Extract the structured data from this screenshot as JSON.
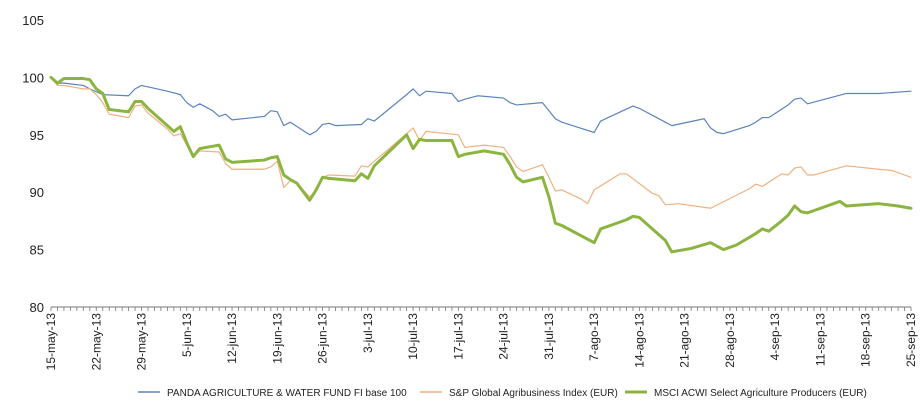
{
  "chart_data": {
    "type": "line",
    "title": "",
    "xlabel": "",
    "ylabel": "",
    "ylim": [
      80,
      105
    ],
    "yticks": [
      80,
      85,
      90,
      95,
      100,
      105
    ],
    "grid": false,
    "legend_position": "bottom",
    "x_tick_labels": [
      "15-may-13",
      "22-may-13",
      "29-may-13",
      "5-jun-13",
      "12-jun-13",
      "19-jun-13",
      "26-jun-13",
      "3-jul-13",
      "10-jul-13",
      "17-jul-13",
      "24-jul-13",
      "31-jul-13",
      "7-ago-13",
      "14-ago-13",
      "21-ago-13",
      "28-ago-13",
      "4-sep-13",
      "11-sep-13",
      "18-sep-13",
      "25-sep-13"
    ],
    "x": [
      0,
      1,
      2,
      3,
      4,
      5,
      6,
      7,
      8,
      9,
      10,
      11,
      12,
      13,
      14,
      15,
      16,
      17,
      18,
      19,
      20,
      21,
      22,
      23,
      24,
      25,
      26,
      27,
      28,
      29,
      30,
      31,
      32,
      33,
      34,
      35,
      36,
      37,
      38,
      39,
      40,
      41,
      42,
      43,
      44,
      45,
      46,
      47,
      48,
      49,
      50,
      51,
      52,
      53,
      54,
      55,
      56,
      57,
      58,
      59,
      60,
      61,
      62,
      63,
      64,
      65,
      66,
      67,
      68,
      69,
      70,
      71,
      72,
      73,
      74,
      75,
      76,
      77,
      78,
      79,
      80,
      81,
      82,
      83,
      84,
      85,
      86,
      87,
      88,
      89,
      90,
      91,
      92,
      93,
      94,
      95,
      96,
      97,
      98,
      99,
      100,
      101,
      102,
      103,
      104,
      105,
      106,
      107,
      108,
      109,
      110,
      111,
      112,
      113,
      114,
      115,
      116,
      117,
      118,
      119,
      120,
      121,
      122,
      123,
      124,
      125,
      126,
      127,
      128,
      129,
      130,
      131,
      132,
      133
    ],
    "series": [
      {
        "name": "PANDA AGRICULTURE & WATER FUND FI base 100",
        "color": "#5b84bf",
        "width": 1.2,
        "points": [
          [
            0,
            100
          ],
          [
            1,
            99.5
          ],
          [
            2,
            99.5
          ],
          [
            5,
            99.3
          ],
          [
            6,
            99
          ],
          [
            8,
            98.5
          ],
          [
            12,
            98.4
          ],
          [
            13,
            99
          ],
          [
            14,
            99.3
          ],
          [
            18,
            98.8
          ],
          [
            20,
            98.5
          ],
          [
            21,
            97.8
          ],
          [
            22,
            97.4
          ],
          [
            23,
            97.7
          ],
          [
            25,
            97.1
          ],
          [
            26,
            96.6
          ],
          [
            27,
            96.8
          ],
          [
            28,
            96.3
          ],
          [
            33,
            96.6
          ],
          [
            34,
            97.1
          ],
          [
            35,
            97
          ],
          [
            36,
            95.8
          ],
          [
            37,
            96.1
          ],
          [
            40,
            95
          ],
          [
            41,
            95.3
          ],
          [
            42,
            95.9
          ],
          [
            43,
            96
          ],
          [
            44,
            95.8
          ],
          [
            48,
            95.9
          ],
          [
            49,
            96.4
          ],
          [
            50,
            96.2
          ],
          [
            55,
            98.5
          ],
          [
            56,
            99
          ],
          [
            57,
            98.4
          ],
          [
            58,
            98.8
          ],
          [
            62,
            98.6
          ],
          [
            63,
            97.9
          ],
          [
            64,
            98.1
          ],
          [
            66,
            98.4
          ],
          [
            70,
            98.2
          ],
          [
            71,
            97.8
          ],
          [
            72,
            97.6
          ],
          [
            76,
            97.8
          ],
          [
            78,
            96.4
          ],
          [
            79,
            96.1
          ],
          [
            84,
            95.2
          ],
          [
            85,
            96.2
          ],
          [
            90,
            97.5
          ],
          [
            91,
            97.3
          ],
          [
            95,
            96.1
          ],
          [
            96,
            95.8
          ],
          [
            101,
            96.4
          ],
          [
            102,
            95.6
          ],
          [
            103,
            95.2
          ],
          [
            104,
            95.1
          ],
          [
            108,
            95.8
          ],
          [
            109,
            96.1
          ],
          [
            110,
            96.5
          ],
          [
            111,
            96.5
          ],
          [
            114,
            97.6
          ],
          [
            115,
            98.1
          ],
          [
            116,
            98.2
          ],
          [
            117,
            97.7
          ],
          [
            123,
            98.6
          ],
          [
            128,
            98.6
          ],
          [
            133,
            98.8
          ]
        ]
      },
      {
        "name": "S&P Global Agribusiness Index (EUR)",
        "color": "#f2b17f",
        "width": 1.2,
        "points": [
          [
            0,
            100
          ],
          [
            1,
            99.3
          ],
          [
            2,
            99.3
          ],
          [
            5,
            99
          ],
          [
            6,
            99
          ],
          [
            7,
            98.5
          ],
          [
            8,
            97.8
          ],
          [
            9,
            96.8
          ],
          [
            12,
            96.5
          ],
          [
            13,
            97.5
          ],
          [
            14,
            97.6
          ],
          [
            15,
            96.9
          ],
          [
            18,
            95.5
          ],
          [
            19,
            94.9
          ],
          [
            20,
            95.1
          ],
          [
            21,
            94.1
          ],
          [
            22,
            93.1
          ],
          [
            23,
            93.6
          ],
          [
            26,
            93.5
          ],
          [
            27,
            92.5
          ],
          [
            28,
            92
          ],
          [
            33,
            92
          ],
          [
            34,
            92.2
          ],
          [
            35,
            92.7
          ],
          [
            36,
            90.4
          ],
          [
            37,
            91
          ],
          [
            38,
            90.8
          ],
          [
            40,
            89.6
          ],
          [
            41,
            90.1
          ],
          [
            42,
            91.3
          ],
          [
            43,
            91.5
          ],
          [
            47,
            91.4
          ],
          [
            48,
            92.3
          ],
          [
            49,
            92.2
          ],
          [
            50,
            92.7
          ],
          [
            55,
            95.1
          ],
          [
            56,
            95.6
          ],
          [
            57,
            94.5
          ],
          [
            58,
            95.3
          ],
          [
            63,
            95
          ],
          [
            64,
            93.9
          ],
          [
            67,
            94.1
          ],
          [
            70,
            93.9
          ],
          [
            71,
            93.1
          ],
          [
            72,
            92.2
          ],
          [
            73,
            91.8
          ],
          [
            76,
            92.4
          ],
          [
            77,
            91.3
          ],
          [
            78,
            90.1
          ],
          [
            79,
            90.2
          ],
          [
            82,
            89.4
          ],
          [
            83,
            89
          ],
          [
            84,
            90.2
          ],
          [
            88,
            91.6
          ],
          [
            89,
            91.6
          ],
          [
            93,
            89.9
          ],
          [
            94,
            89.7
          ],
          [
            95,
            88.9
          ],
          [
            97,
            89
          ],
          [
            102,
            88.6
          ],
          [
            108,
            90.3
          ],
          [
            109,
            90.7
          ],
          [
            110,
            90.5
          ],
          [
            113,
            91.6
          ],
          [
            114,
            91.5
          ],
          [
            115,
            92.1
          ],
          [
            116,
            92.2
          ],
          [
            117,
            91.5
          ],
          [
            118,
            91.5
          ],
          [
            123,
            92.3
          ],
          [
            128,
            92
          ],
          [
            130,
            91.9
          ],
          [
            133,
            91.3
          ]
        ]
      },
      {
        "name": "MSCI ACWI Select Agriculture Producers (EUR)",
        "color": "#8cb440",
        "width": 3,
        "points": [
          [
            0,
            100
          ],
          [
            1,
            99.5
          ],
          [
            2,
            99.9
          ],
          [
            5,
            99.9
          ],
          [
            6,
            99.8
          ],
          [
            7,
            99
          ],
          [
            8,
            98.6
          ],
          [
            9,
            97.2
          ],
          [
            12,
            97
          ],
          [
            13,
            97.9
          ],
          [
            14,
            97.9
          ],
          [
            15,
            97.3
          ],
          [
            18,
            95.8
          ],
          [
            19,
            95.3
          ],
          [
            20,
            95.7
          ],
          [
            21,
            94.3
          ],
          [
            22,
            93.1
          ],
          [
            23,
            93.8
          ],
          [
            26,
            94.1
          ],
          [
            27,
            92.9
          ],
          [
            28,
            92.6
          ],
          [
            33,
            92.8
          ],
          [
            34,
            93
          ],
          [
            35,
            93.1
          ],
          [
            36,
            91.5
          ],
          [
            37,
            91.1
          ],
          [
            38,
            90.8
          ],
          [
            40,
            89.3
          ],
          [
            41,
            90.2
          ],
          [
            42,
            91.3
          ],
          [
            43,
            91.2
          ],
          [
            47,
            91
          ],
          [
            48,
            91.6
          ],
          [
            49,
            91.2
          ],
          [
            50,
            92.3
          ],
          [
            55,
            95
          ],
          [
            56,
            93.8
          ],
          [
            57,
            94.6
          ],
          [
            58,
            94.5
          ],
          [
            62,
            94.5
          ],
          [
            63,
            93.1
          ],
          [
            64,
            93.3
          ],
          [
            67,
            93.6
          ],
          [
            70,
            93.3
          ],
          [
            71,
            92.4
          ],
          [
            72,
            91.3
          ],
          [
            73,
            90.9
          ],
          [
            76,
            91.3
          ],
          [
            77,
            89.6
          ],
          [
            78,
            87.3
          ],
          [
            79,
            87.1
          ],
          [
            84,
            85.6
          ],
          [
            85,
            86.8
          ],
          [
            89,
            87.6
          ],
          [
            90,
            87.9
          ],
          [
            91,
            87.8
          ],
          [
            94,
            86.3
          ],
          [
            95,
            85.8
          ],
          [
            96,
            84.8
          ],
          [
            99,
            85.1
          ],
          [
            102,
            85.6
          ],
          [
            104,
            85
          ],
          [
            106,
            85.4
          ],
          [
            109,
            86.4
          ],
          [
            110,
            86.8
          ],
          [
            111,
            86.6
          ],
          [
            113,
            87.5
          ],
          [
            114,
            88
          ],
          [
            115,
            88.8
          ],
          [
            116,
            88.3
          ],
          [
            117,
            88.2
          ],
          [
            121,
            89
          ],
          [
            122,
            89.2
          ],
          [
            123,
            88.8
          ],
          [
            128,
            89
          ],
          [
            131,
            88.8
          ],
          [
            133,
            88.6
          ]
        ]
      }
    ]
  }
}
